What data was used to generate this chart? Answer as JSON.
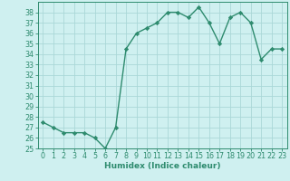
{
  "x": [
    0,
    1,
    2,
    3,
    4,
    5,
    6,
    7,
    8,
    9,
    10,
    11,
    12,
    13,
    14,
    15,
    16,
    17,
    18,
    19,
    20,
    21,
    22,
    23
  ],
  "y": [
    27.5,
    27.0,
    26.5,
    26.5,
    26.5,
    26.0,
    25.0,
    27.0,
    34.5,
    36.0,
    36.5,
    37.0,
    38.0,
    38.0,
    37.5,
    38.5,
    37.0,
    35.0,
    37.5,
    38.0,
    37.0,
    33.5,
    34.5,
    34.5
  ],
  "line_color": "#2e8b6e",
  "marker": "D",
  "marker_size": 2.2,
  "bg_color": "#cff0f0",
  "grid_color": "#aad8d8",
  "xlabel": "Humidex (Indice chaleur)",
  "xlim": [
    -0.5,
    23.5
  ],
  "ylim": [
    25,
    39
  ],
  "yticks": [
    25,
    26,
    27,
    28,
    29,
    30,
    31,
    32,
    33,
    34,
    35,
    36,
    37,
    38
  ],
  "xticks": [
    0,
    1,
    2,
    3,
    4,
    5,
    6,
    7,
    8,
    9,
    10,
    11,
    12,
    13,
    14,
    15,
    16,
    17,
    18,
    19,
    20,
    21,
    22,
    23
  ],
  "xlabel_fontsize": 6.5,
  "tick_fontsize": 5.8,
  "line_width": 1.0
}
